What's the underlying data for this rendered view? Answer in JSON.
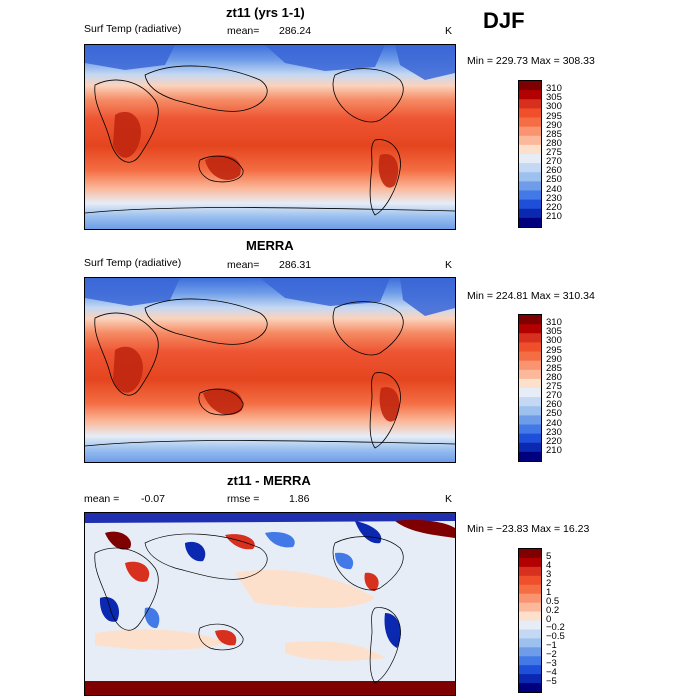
{
  "season": "DJF",
  "panels": [
    {
      "title": "zt11 (yrs 1-1)",
      "left_label": "Surf Temp (radiative)",
      "mid_label": "mean=",
      "mid_value": "286.24",
      "right_label": "K",
      "stats": "Min = 229.73 Max = 308.33",
      "colorbar": {
        "labels": [
          "310",
          "305",
          "300",
          "295",
          "290",
          "285",
          "280",
          "275",
          "270",
          "260",
          "250",
          "240",
          "230",
          "220",
          "210"
        ],
        "colors": [
          "#7f0000",
          "#b30000",
          "#d7301f",
          "#ef4f2b",
          "#f46d43",
          "#f99370",
          "#fbb89a",
          "#fde0cc",
          "#e6edf7",
          "#c4d8f3",
          "#9cc1ef",
          "#6e9ce8",
          "#4379e6",
          "#1f4fd8",
          "#0a28b0",
          "#00007f"
        ]
      }
    },
    {
      "title": "MERRA",
      "left_label": "Surf Temp (radiative)",
      "mid_label": "mean=",
      "mid_value": "286.31",
      "right_label": "K",
      "stats": "Min = 224.81 Max = 310.34",
      "colorbar": {
        "labels": [
          "310",
          "305",
          "300",
          "295",
          "290",
          "285",
          "280",
          "275",
          "270",
          "260",
          "250",
          "240",
          "230",
          "220",
          "210"
        ],
        "colors": [
          "#7f0000",
          "#b30000",
          "#d7301f",
          "#ef4f2b",
          "#f46d43",
          "#f99370",
          "#fbb89a",
          "#fde0cc",
          "#e6edf7",
          "#c4d8f3",
          "#9cc1ef",
          "#6e9ce8",
          "#4379e6",
          "#1f4fd8",
          "#0a28b0",
          "#00007f"
        ]
      }
    },
    {
      "title": "zt11 - MERRA",
      "left_label": "mean =",
      "left_value": "-0.07",
      "mid_label": "rmse =",
      "mid_value": "1.86",
      "right_label": "K",
      "stats": "Min = −23.83 Max =  16.23",
      "colorbar": {
        "labels": [
          "5",
          "4",
          "3",
          "2",
          "1",
          "0.5",
          "0.2",
          "0",
          "−0.2",
          "−0.5",
          "−1",
          "−2",
          "−3",
          "−4",
          "−5"
        ],
        "colors": [
          "#7f0000",
          "#b30000",
          "#d7301f",
          "#ef4f2b",
          "#f46d43",
          "#f99370",
          "#fbb89a",
          "#fde0cc",
          "#e6edf7",
          "#c4d8f3",
          "#9cc1ef",
          "#6e9ce8",
          "#4379e6",
          "#1f4fd8",
          "#0a28b0",
          "#00007f"
        ]
      }
    }
  ]
}
